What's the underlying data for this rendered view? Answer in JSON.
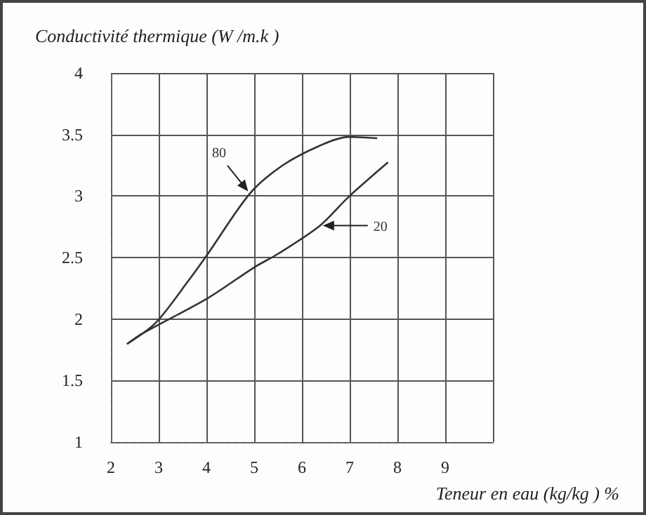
{
  "chart_data": {
    "type": "line",
    "ylabel": "Conductivité thermique (W /m.k )",
    "xlabel": "Teneur en eau (kg/kg ) %",
    "xlim": [
      2,
      10
    ],
    "xticks": [
      2,
      3,
      4,
      5,
      6,
      7,
      8,
      9,
      {
        "value": 10,
        "label": null
      }
    ],
    "ylim": [
      1,
      4
    ],
    "yticks": [
      1,
      1.5,
      2,
      2.5,
      3,
      3.5,
      4
    ],
    "grid": true,
    "legend": false,
    "marker": "none",
    "line_style": "solid",
    "series": [
      {
        "name": "80",
        "color": "#333333",
        "x": [
          2.35,
          2.94,
          3.62,
          4.03,
          4.91,
          5.6,
          6.38,
          6.97,
          7.56
        ],
        "values": [
          1.8,
          1.97,
          2.31,
          2.53,
          3.02,
          3.25,
          3.41,
          3.48,
          3.47
        ]
      },
      {
        "name": "20",
        "color": "#333333",
        "x": [
          2.35,
          2.65,
          4.03,
          5.0,
          5.5,
          6.38,
          6.97,
          7.79
        ],
        "values": [
          1.8,
          1.88,
          2.17,
          2.42,
          2.53,
          2.76,
          2.99,
          3.27
        ]
      }
    ]
  }
}
